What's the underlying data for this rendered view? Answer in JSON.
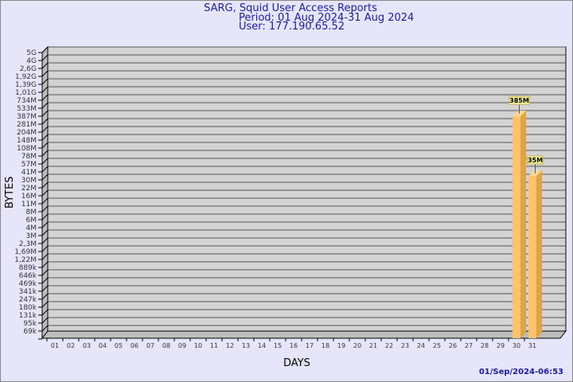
{
  "chart_data": {
    "type": "bar",
    "title": "SARG, Squid User Access Reports",
    "subtitle_period": "Period: 01 Aug 2024-31 Aug 2024",
    "subtitle_user": "User: 177.190.65.52",
    "xlabel": "DAYS",
    "ylabel": "BYTES",
    "footer": "01/Sep/2024-06:53",
    "y_scale": "log",
    "grid": true,
    "categories": [
      "01",
      "02",
      "03",
      "04",
      "05",
      "06",
      "07",
      "08",
      "09",
      "10",
      "11",
      "12",
      "13",
      "14",
      "15",
      "16",
      "17",
      "18",
      "19",
      "20",
      "21",
      "22",
      "23",
      "24",
      "25",
      "26",
      "27",
      "28",
      "29",
      "30",
      "31"
    ],
    "y_ticks": [
      {
        "label": "5G",
        "value": 5000000000
      },
      {
        "label": "4G",
        "value": 4000000000
      },
      {
        "label": "2,6G",
        "value": 2600000000
      },
      {
        "label": "1,92G",
        "value": 1920000000
      },
      {
        "label": "1,39G",
        "value": 1390000000
      },
      {
        "label": "1,01G",
        "value": 1010000000
      },
      {
        "label": "734M",
        "value": 734000000
      },
      {
        "label": "533M",
        "value": 533000000
      },
      {
        "label": "387M",
        "value": 387000000
      },
      {
        "label": "281M",
        "value": 281000000
      },
      {
        "label": "204M",
        "value": 204000000
      },
      {
        "label": "148M",
        "value": 148000000
      },
      {
        "label": "108M",
        "value": 108000000
      },
      {
        "label": "78M",
        "value": 78000000
      },
      {
        "label": "57M",
        "value": 57000000
      },
      {
        "label": "41M",
        "value": 41000000
      },
      {
        "label": "30M",
        "value": 30000000
      },
      {
        "label": "22M",
        "value": 22000000
      },
      {
        "label": "16M",
        "value": 16000000
      },
      {
        "label": "11M",
        "value": 11000000
      },
      {
        "label": "8M",
        "value": 8000000
      },
      {
        "label": "6M",
        "value": 6000000
      },
      {
        "label": "4M",
        "value": 4000000
      },
      {
        "label": "3M",
        "value": 3000000
      },
      {
        "label": "2,3M",
        "value": 2300000
      },
      {
        "label": "1,69M",
        "value": 1690000
      },
      {
        "label": "1,22M",
        "value": 1220000
      },
      {
        "label": "889k",
        "value": 889000
      },
      {
        "label": "646k",
        "value": 646000
      },
      {
        "label": "469k",
        "value": 469000
      },
      {
        "label": "341k",
        "value": 341000
      },
      {
        "label": "247k",
        "value": 247000
      },
      {
        "label": "180k",
        "value": 180000
      },
      {
        "label": "131k",
        "value": 131000
      },
      {
        "label": "95k",
        "value": 95000
      },
      {
        "label": "69k",
        "value": 69000
      }
    ],
    "bars": [
      {
        "day": "30",
        "value": 385000000,
        "label": "385M"
      },
      {
        "day": "31",
        "value": 35000000,
        "label": "35M"
      }
    ],
    "colors": {
      "background": "#e6e6fa",
      "plot": "#d3d3d3",
      "bar_front": "#ffc468",
      "bar_side": "#e0a448",
      "bar_top": "#ffd890",
      "label_bg": "#f0f0a0",
      "text": "#1a1aa6"
    }
  }
}
